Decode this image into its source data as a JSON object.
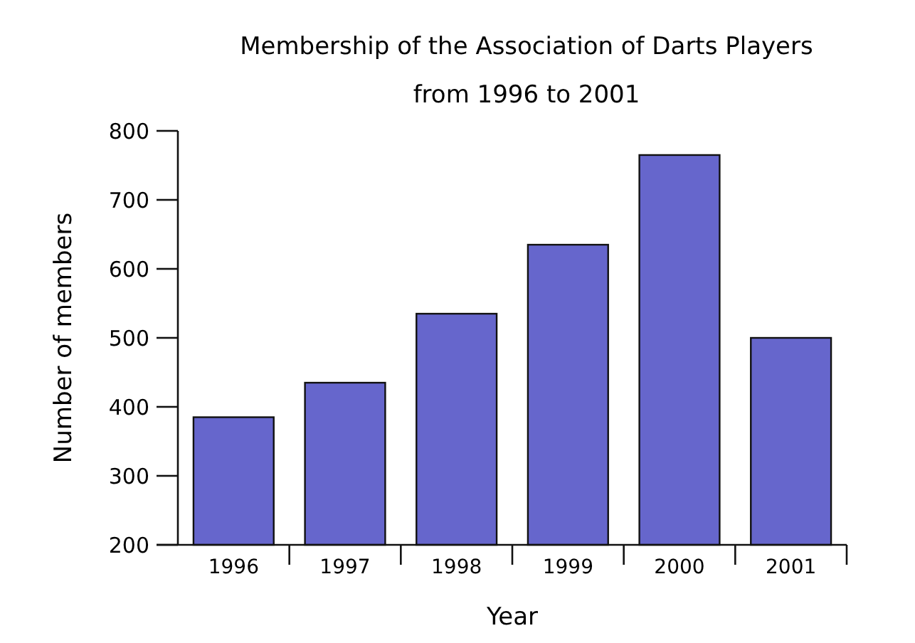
{
  "chart_data": {
    "type": "bar",
    "title": "Membership of the Association of Darts Players",
    "subtitle": "from 1996 to 2001",
    "xlabel": "Year",
    "ylabel": "Number of members",
    "categories": [
      "1996",
      "1997",
      "1998",
      "1999",
      "2000",
      "2001"
    ],
    "values": [
      385,
      435,
      535,
      635,
      765,
      500
    ],
    "color": "#6666cc",
    "ylim": [
      200,
      800
    ],
    "yticks": [
      200,
      300,
      400,
      500,
      600,
      700,
      800
    ],
    "grid": false
  }
}
